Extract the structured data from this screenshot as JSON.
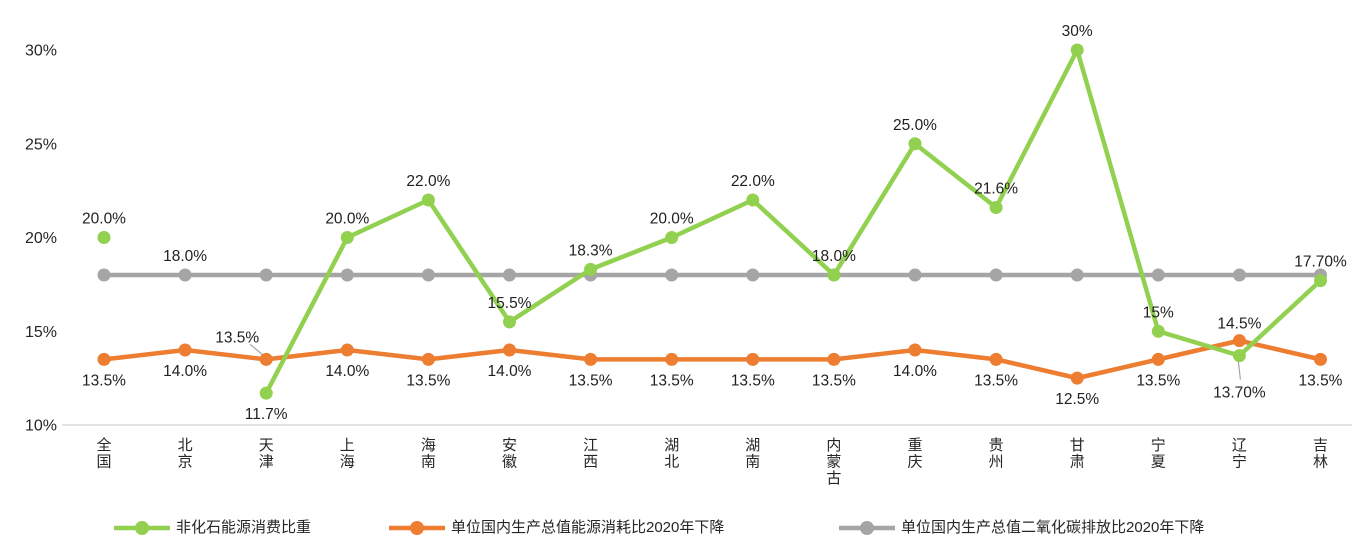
{
  "chart_data": {
    "type": "line",
    "title": "",
    "xlabel": "",
    "ylabel": "",
    "grid": false,
    "legend_position": "bottom",
    "ylim": [
      10,
      30
    ],
    "y_ticks": [
      {
        "label": "10%",
        "value": 10
      },
      {
        "label": "15%",
        "value": 15
      },
      {
        "label": "20%",
        "value": 20
      },
      {
        "label": "25%",
        "value": 25
      },
      {
        "label": "30%",
        "value": 30
      }
    ],
    "categories": [
      "全国",
      "北京",
      "天津",
      "上海",
      "海南",
      "安徽",
      "江西",
      "湖北",
      "湖南",
      "内蒙古",
      "重庆",
      "贵州",
      "甘肃",
      "宁夏",
      "辽宁",
      "吉林"
    ],
    "series": [
      {
        "name": "非化石能源消费比重",
        "color": "#92d050",
        "values": [
          20.0,
          null,
          11.7,
          20.0,
          22.0,
          15.5,
          18.3,
          20.0,
          22.0,
          18.0,
          25.0,
          21.6,
          30,
          15,
          13.7,
          17.7
        ],
        "labels": [
          {
            "t": "20.0%",
            "pos": "above"
          },
          null,
          {
            "t": "11.7%",
            "pos": "below"
          },
          {
            "t": "20.0%",
            "pos": "above"
          },
          {
            "t": "22.0%",
            "pos": "above"
          },
          {
            "t": "15.5%",
            "pos": "above"
          },
          {
            "t": "18.3%",
            "pos": "above"
          },
          {
            "t": "20.0%",
            "pos": "above"
          },
          {
            "t": "22.0%",
            "pos": "above"
          },
          {
            "t": "18.0%",
            "pos": "above"
          },
          {
            "t": "25.0%",
            "pos": "above"
          },
          {
            "t": "21.6%",
            "pos": "above"
          },
          {
            "t": "30%",
            "pos": "above"
          },
          {
            "t": "15%",
            "pos": "above"
          },
          {
            "t": "13.70%",
            "pos": "below-leader"
          },
          {
            "t": "17.70%",
            "pos": "above"
          }
        ]
      },
      {
        "name": "单位国内生产总值能源消耗比2020年下降",
        "color": "#ed7d31",
        "values": [
          13.5,
          14.0,
          13.5,
          14.0,
          13.5,
          14.0,
          13.5,
          13.5,
          13.5,
          13.5,
          14.0,
          13.5,
          12.5,
          13.5,
          14.5,
          13.5
        ],
        "labels": [
          {
            "t": "13.5%",
            "pos": "below"
          },
          {
            "t": "14.0%",
            "pos": "below"
          },
          {
            "t": "13.5%",
            "pos": "above-leader"
          },
          {
            "t": "14.0%",
            "pos": "below"
          },
          {
            "t": "13.5%",
            "pos": "below"
          },
          {
            "t": "14.0%",
            "pos": "below"
          },
          {
            "t": "13.5%",
            "pos": "below"
          },
          {
            "t": "13.5%",
            "pos": "below"
          },
          {
            "t": "13.5%",
            "pos": "below"
          },
          {
            "t": "13.5%",
            "pos": "below"
          },
          {
            "t": "14.0%",
            "pos": "below"
          },
          {
            "t": "13.5%",
            "pos": "below"
          },
          {
            "t": "12.5%",
            "pos": "below"
          },
          {
            "t": "13.5%",
            "pos": "below"
          },
          {
            "t": "14.5%",
            "pos": "above"
          },
          {
            "t": "13.5%",
            "pos": "below"
          }
        ]
      },
      {
        "name": "单位国内生产总值二氧化碳排放比2020年下降",
        "color": "#a5a5a5",
        "values": [
          18,
          18,
          18,
          18,
          18,
          18,
          18,
          18,
          18,
          18,
          18,
          18,
          18,
          18,
          18,
          18
        ],
        "labels": [
          null,
          {
            "t": "18.0%",
            "pos": "above"
          },
          null,
          null,
          null,
          null,
          null,
          null,
          null,
          null,
          null,
          null,
          null,
          null,
          null,
          null
        ]
      }
    ],
    "colors": {
      "axis_line": "#d9d9d9",
      "tick_text": "#262626",
      "data_label_text": "#212121",
      "leader_line": "#a6a6a6"
    }
  }
}
